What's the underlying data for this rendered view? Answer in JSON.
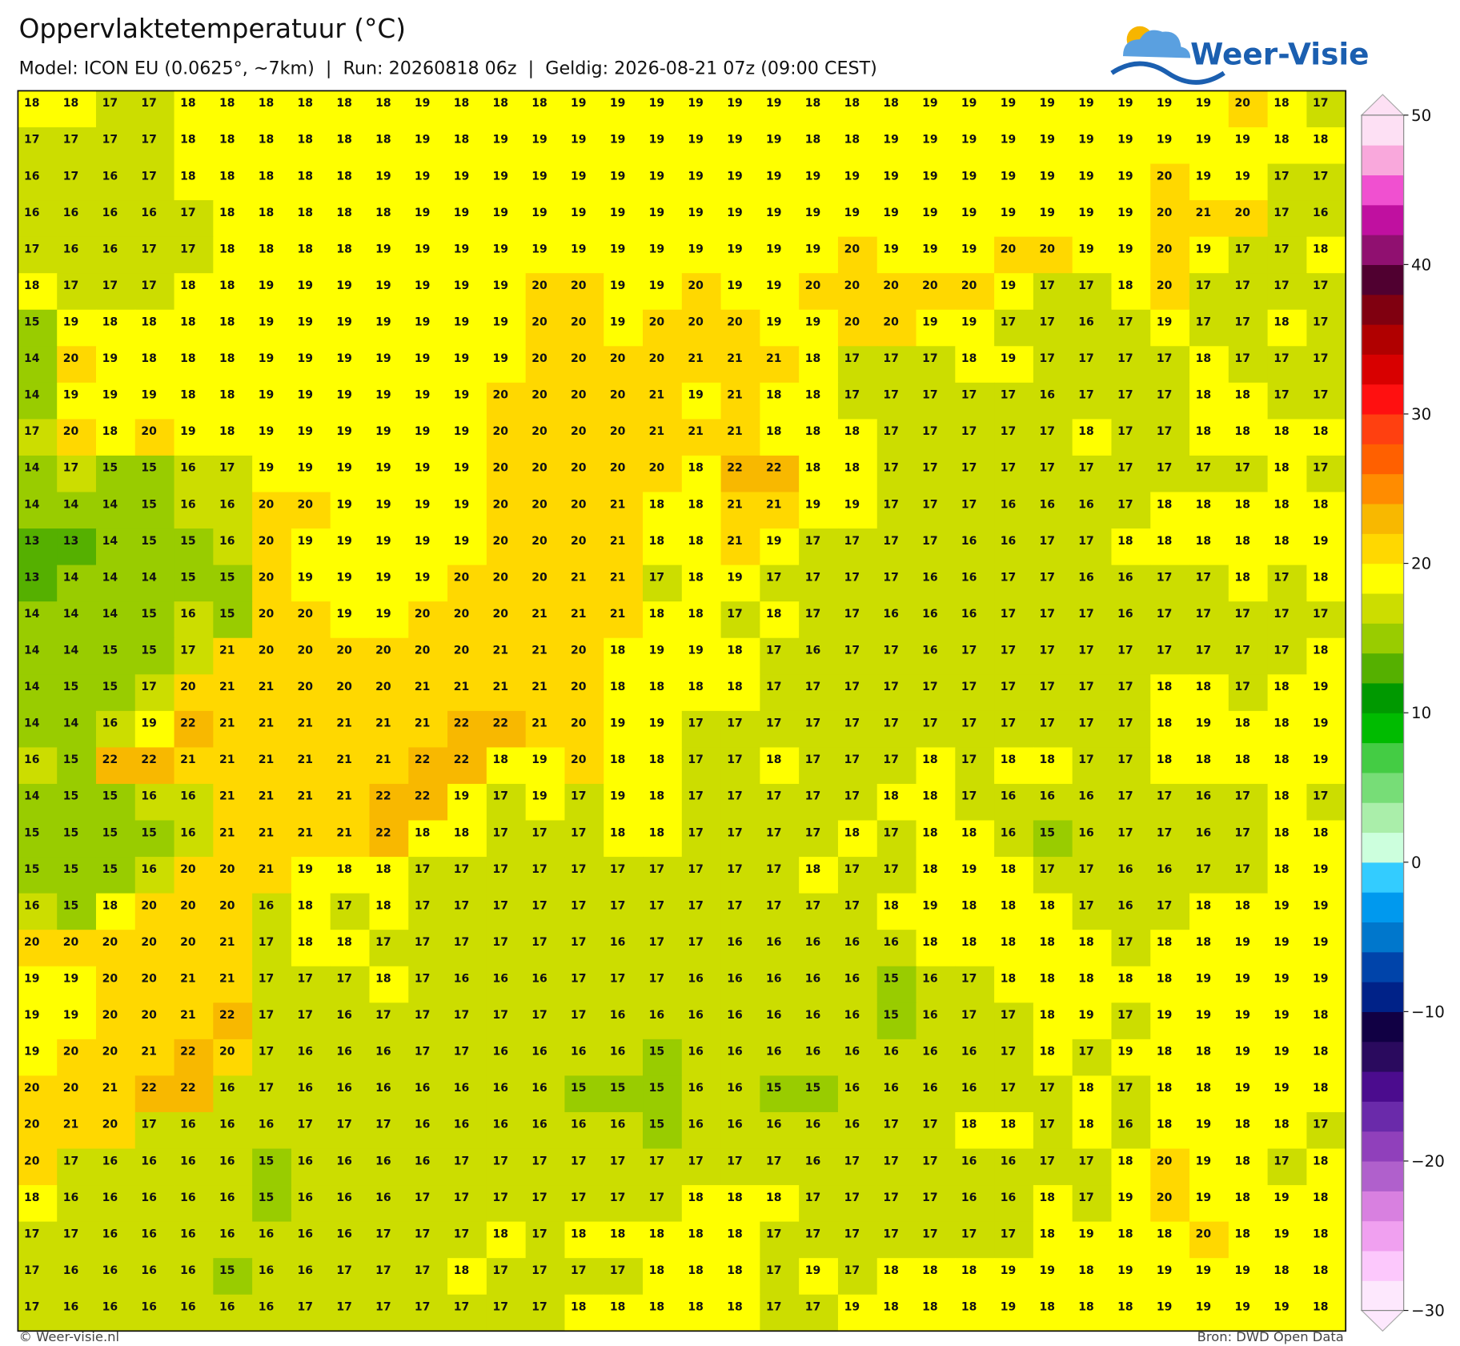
{
  "chart_data": {
    "type": "grid_map",
    "title": "Oppervlaktetemperatuur (°C)",
    "subtitle": "Model: ICON EU (0.0625°, ~7km)  |  Run: 20260818 06z  |  Geldig: 2026-08-21 07z (09:00 CEST)",
    "logo": "Weer-Visie",
    "footer_left": "© Weer-visie.nl",
    "footer_right": "Bron: DWD Open Data",
    "clim": [
      -30,
      50
    ],
    "colorbar_ticks": [
      50,
      40,
      30,
      20,
      10,
      0,
      {
        "value": -10,
        "label": "−10"
      },
      {
        "value": -20,
        "label": "−20"
      },
      {
        "value": -30,
        "label": "−30"
      }
    ],
    "colors": [
      "#fde8fd",
      "#fcc8fc",
      "#f0a0f0",
      "#d880e0",
      "#b060cc",
      "#9040bb",
      "#6a2aaa",
      "#4b0c8e",
      "#2a0a5e",
      "#110044",
      "#002288",
      "#0044aa",
      "#0077cc",
      "#0099ee",
      "#33ccff",
      "#ccffdd",
      "#aaeeaa",
      "#77dd77",
      "#44cc44",
      "#00bb00",
      "#009900",
      "#55b000",
      "#99cc00",
      "#ccdd00",
      "#ffff00",
      "#ffd800",
      "#f8b800",
      "#ff8c00",
      "#ff6000",
      "#ff4010",
      "#ff1010",
      "#d80000",
      "#b00000",
      "#800010",
      "#500030",
      "#901070",
      "#c010a0",
      "#f050d0",
      "#f9a8dc",
      "#fde0f4"
    ],
    "values": [
      [
        18,
        18,
        17,
        17,
        18,
        18,
        18,
        18,
        18,
        18,
        19,
        18,
        18,
        18,
        19,
        19,
        19,
        19,
        19,
        19,
        18,
        18,
        18,
        19,
        19,
        19,
        19,
        19,
        19,
        19,
        19,
        20,
        18,
        17
      ],
      [
        17,
        17,
        17,
        17,
        18,
        18,
        18,
        18,
        18,
        18,
        19,
        18,
        19,
        19,
        19,
        19,
        19,
        19,
        19,
        19,
        18,
        18,
        19,
        19,
        19,
        19,
        19,
        19,
        19,
        19,
        19,
        19,
        18,
        18
      ],
      [
        16,
        17,
        16,
        17,
        18,
        18,
        18,
        18,
        18,
        19,
        19,
        19,
        19,
        19,
        19,
        19,
        19,
        19,
        19,
        19,
        19,
        19,
        19,
        19,
        19,
        19,
        19,
        19,
        19,
        20,
        19,
        19,
        17,
        17
      ],
      [
        16,
        16,
        16,
        16,
        17,
        18,
        18,
        18,
        18,
        18,
        19,
        19,
        19,
        19,
        19,
        19,
        19,
        19,
        19,
        19,
        19,
        19,
        19,
        19,
        19,
        19,
        19,
        19,
        19,
        20,
        21,
        20,
        17,
        16
      ],
      [
        17,
        16,
        16,
        17,
        17,
        18,
        18,
        18,
        18,
        19,
        19,
        19,
        19,
        19,
        19,
        19,
        19,
        19,
        19,
        19,
        19,
        20,
        19,
        19,
        19,
        20,
        20,
        19,
        19,
        20,
        19,
        17,
        17,
        18
      ],
      [
        18,
        17,
        17,
        17,
        18,
        18,
        19,
        19,
        19,
        19,
        19,
        19,
        19,
        20,
        20,
        19,
        19,
        20,
        19,
        19,
        20,
        20,
        20,
        20,
        20,
        19,
        17,
        17,
        18,
        20,
        17,
        17,
        17,
        17
      ],
      [
        15,
        19,
        18,
        18,
        18,
        18,
        19,
        19,
        19,
        19,
        19,
        19,
        19,
        20,
        20,
        19,
        20,
        20,
        20,
        19,
        19,
        20,
        20,
        19,
        19,
        17,
        17,
        16,
        17,
        19,
        17,
        17,
        18,
        17
      ],
      [
        14,
        20,
        19,
        18,
        18,
        18,
        19,
        19,
        19,
        19,
        19,
        19,
        19,
        20,
        20,
        20,
        20,
        21,
        21,
        21,
        18,
        17,
        17,
        17,
        18,
        19,
        17,
        17,
        17,
        17,
        18,
        17,
        17,
        17
      ],
      [
        14,
        19,
        19,
        19,
        18,
        18,
        19,
        19,
        19,
        19,
        19,
        19,
        20,
        20,
        20,
        20,
        21,
        19,
        21,
        18,
        18,
        17,
        17,
        17,
        17,
        17,
        16,
        17,
        17,
        17,
        18,
        18,
        17,
        17
      ],
      [
        17,
        20,
        18,
        20,
        19,
        18,
        19,
        19,
        19,
        19,
        19,
        19,
        20,
        20,
        20,
        20,
        21,
        21,
        21,
        18,
        18,
        18,
        17,
        17,
        17,
        17,
        17,
        18,
        17,
        17,
        18,
        18,
        18,
        18
      ],
      [
        14,
        17,
        15,
        15,
        16,
        17,
        19,
        19,
        19,
        19,
        19,
        19,
        20,
        20,
        20,
        20,
        20,
        18,
        22,
        22,
        18,
        18,
        17,
        17,
        17,
        17,
        17,
        17,
        17,
        17,
        17,
        17,
        18,
        17
      ],
      [
        14,
        14,
        14,
        15,
        16,
        16,
        20,
        20,
        19,
        19,
        19,
        19,
        20,
        20,
        20,
        21,
        18,
        18,
        21,
        21,
        19,
        19,
        17,
        17,
        17,
        16,
        16,
        16,
        17,
        18,
        18,
        18,
        18,
        18
      ],
      [
        13,
        13,
        14,
        15,
        15,
        16,
        20,
        19,
        19,
        19,
        19,
        19,
        20,
        20,
        20,
        21,
        18,
        18,
        21,
        19,
        17,
        17,
        17,
        17,
        16,
        16,
        17,
        17,
        18,
        18,
        18,
        18,
        18,
        19
      ],
      [
        13,
        14,
        14,
        14,
        15,
        15,
        20,
        19,
        19,
        19,
        19,
        20,
        20,
        20,
        21,
        21,
        17,
        18,
        19,
        17,
        17,
        17,
        17,
        16,
        16,
        17,
        17,
        16,
        16,
        17,
        17,
        18,
        17,
        18
      ],
      [
        14,
        14,
        14,
        15,
        16,
        15,
        20,
        20,
        19,
        19,
        20,
        20,
        20,
        21,
        21,
        21,
        18,
        18,
        17,
        18,
        17,
        17,
        16,
        16,
        16,
        17,
        17,
        17,
        16,
        17,
        17,
        17,
        17,
        17
      ],
      [
        14,
        14,
        15,
        15,
        17,
        21,
        20,
        20,
        20,
        20,
        20,
        20,
        21,
        21,
        20,
        18,
        19,
        19,
        18,
        17,
        16,
        17,
        17,
        16,
        17,
        17,
        17,
        17,
        17,
        17,
        17,
        17,
        17,
        18
      ],
      [
        14,
        15,
        15,
        17,
        20,
        21,
        21,
        20,
        20,
        20,
        21,
        21,
        21,
        21,
        20,
        18,
        18,
        18,
        18,
        17,
        17,
        17,
        17,
        17,
        17,
        17,
        17,
        17,
        17,
        18,
        18,
        17,
        18,
        19
      ],
      [
        14,
        14,
        16,
        19,
        22,
        21,
        21,
        21,
        21,
        21,
        21,
        22,
        22,
        21,
        20,
        19,
        19,
        17,
        17,
        17,
        17,
        17,
        17,
        17,
        17,
        17,
        17,
        17,
        17,
        18,
        19,
        18,
        18,
        19
      ],
      [
        16,
        15,
        22,
        22,
        21,
        21,
        21,
        21,
        21,
        21,
        22,
        22,
        18,
        19,
        20,
        18,
        18,
        17,
        17,
        18,
        17,
        17,
        17,
        18,
        17,
        18,
        18,
        17,
        17,
        18,
        18,
        18,
        18,
        19
      ],
      [
        14,
        15,
        15,
        16,
        16,
        21,
        21,
        21,
        21,
        22,
        22,
        19,
        17,
        19,
        17,
        19,
        18,
        17,
        17,
        17,
        17,
        17,
        18,
        18,
        17,
        16,
        16,
        16,
        17,
        17,
        16,
        17,
        18,
        17
      ],
      [
        15,
        15,
        15,
        15,
        16,
        21,
        21,
        21,
        21,
        22,
        18,
        18,
        17,
        17,
        17,
        18,
        18,
        17,
        17,
        17,
        17,
        18,
        17,
        18,
        18,
        16,
        15,
        16,
        17,
        17,
        16,
        17,
        18,
        18
      ],
      [
        15,
        15,
        15,
        16,
        20,
        20,
        21,
        19,
        18,
        18,
        17,
        17,
        17,
        17,
        17,
        17,
        17,
        17,
        17,
        17,
        18,
        17,
        17,
        18,
        19,
        18,
        17,
        17,
        16,
        16,
        17,
        17,
        18,
        19
      ],
      [
        16,
        15,
        18,
        20,
        20,
        20,
        16,
        18,
        17,
        18,
        17,
        17,
        17,
        17,
        17,
        17,
        17,
        17,
        17,
        17,
        17,
        17,
        18,
        19,
        18,
        18,
        18,
        17,
        16,
        17,
        18,
        18,
        19,
        19
      ],
      [
        20,
        20,
        20,
        20,
        20,
        21,
        17,
        18,
        18,
        17,
        17,
        17,
        17,
        17,
        17,
        16,
        17,
        17,
        16,
        16,
        16,
        16,
        16,
        18,
        18,
        18,
        18,
        18,
        17,
        18,
        18,
        19,
        19,
        19
      ],
      [
        19,
        19,
        20,
        20,
        21,
        21,
        17,
        17,
        17,
        18,
        17,
        16,
        16,
        16,
        17,
        17,
        17,
        16,
        16,
        16,
        16,
        16,
        15,
        16,
        17,
        18,
        18,
        18,
        18,
        18,
        19,
        19,
        19,
        19
      ],
      [
        19,
        19,
        20,
        20,
        21,
        22,
        17,
        17,
        16,
        17,
        17,
        17,
        17,
        17,
        17,
        16,
        16,
        16,
        16,
        16,
        16,
        16,
        15,
        16,
        17,
        17,
        18,
        19,
        17,
        19,
        19,
        19,
        19,
        18
      ],
      [
        19,
        20,
        20,
        21,
        22,
        20,
        17,
        16,
        16,
        16,
        17,
        17,
        16,
        16,
        16,
        16,
        15,
        16,
        16,
        16,
        16,
        16,
        16,
        16,
        16,
        17,
        18,
        17,
        19,
        18,
        18,
        19,
        19,
        18
      ],
      [
        20,
        20,
        21,
        22,
        22,
        16,
        17,
        16,
        16,
        16,
        16,
        16,
        16,
        16,
        15,
        15,
        15,
        16,
        16,
        15,
        15,
        16,
        16,
        16,
        16,
        17,
        17,
        18,
        17,
        18,
        18,
        19,
        19,
        18
      ],
      [
        20,
        21,
        20,
        17,
        16,
        16,
        16,
        17,
        17,
        17,
        16,
        16,
        16,
        16,
        16,
        16,
        15,
        16,
        16,
        16,
        16,
        16,
        17,
        17,
        18,
        18,
        17,
        18,
        16,
        18,
        19,
        18,
        18,
        17
      ],
      [
        20,
        17,
        16,
        16,
        16,
        16,
        15,
        16,
        16,
        16,
        16,
        17,
        17,
        17,
        17,
        17,
        17,
        17,
        17,
        17,
        16,
        17,
        17,
        17,
        16,
        16,
        17,
        17,
        18,
        20,
        19,
        18,
        17,
        18
      ],
      [
        18,
        16,
        16,
        16,
        16,
        16,
        15,
        16,
        16,
        16,
        17,
        17,
        17,
        17,
        17,
        17,
        17,
        18,
        18,
        18,
        17,
        17,
        17,
        17,
        16,
        16,
        18,
        17,
        19,
        20,
        19,
        18,
        19,
        18
      ],
      [
        17,
        17,
        16,
        16,
        16,
        16,
        16,
        16,
        16,
        17,
        17,
        17,
        18,
        17,
        18,
        18,
        18,
        18,
        18,
        17,
        17,
        17,
        17,
        17,
        17,
        17,
        18,
        19,
        18,
        18,
        20,
        18,
        19,
        18
      ],
      [
        17,
        16,
        16,
        16,
        16,
        15,
        16,
        16,
        17,
        17,
        17,
        18,
        17,
        17,
        17,
        17,
        18,
        18,
        18,
        17,
        19,
        17,
        18,
        18,
        18,
        19,
        19,
        18,
        19,
        19,
        19,
        19,
        18,
        18
      ],
      [
        17,
        16,
        16,
        16,
        16,
        16,
        16,
        17,
        17,
        17,
        17,
        17,
        17,
        17,
        18,
        18,
        18,
        18,
        18,
        17,
        17,
        19,
        18,
        18,
        18,
        19,
        18,
        18,
        18,
        19,
        19,
        19,
        19,
        18
      ]
    ]
  }
}
